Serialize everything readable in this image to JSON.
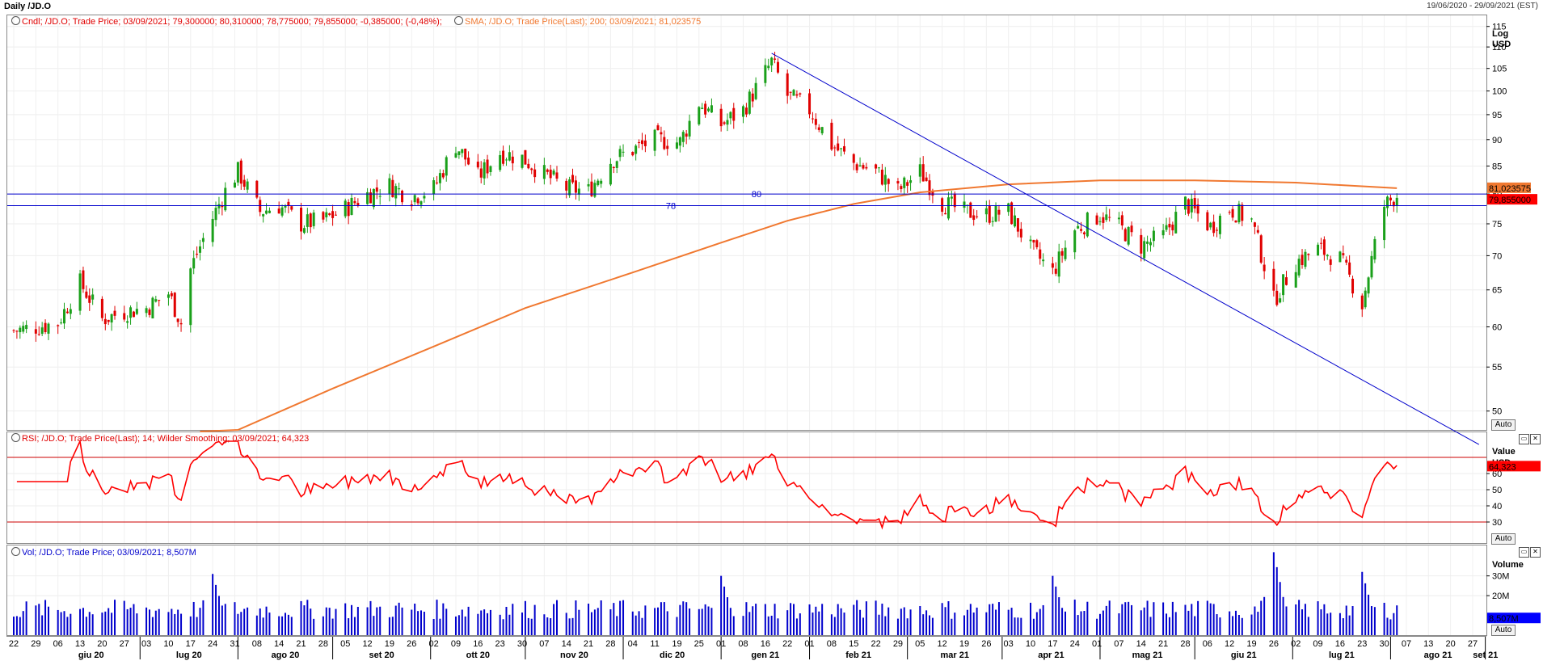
{
  "header": {
    "title": "Daily /JD.O",
    "range": "19/06/2020 - 29/09/2021 (EST)"
  },
  "panels": {
    "price": {
      "legend_candle": "Cndl; /JD.O; Trade Price; 03/09/2021; 79,300000; 80,310000; 78,775000; 79,855000; -0,385000; (-0,48%);",
      "legend_sma": "SMA; /JD.O; Trade Price(Last);  200; 03/09/2021; 81,023575",
      "axis_title_1": "Log",
      "axis_title_2": "USD",
      "ticks": [
        "115",
        "110",
        "105",
        "100",
        "95",
        "90",
        "85",
        "80",
        "75",
        "70",
        "65",
        "60",
        "55",
        "50"
      ],
      "tag_sma": "81,023575",
      "tag_last": "79,855000",
      "hline_80_label": "80",
      "hline_78_label": "78",
      "auto": "Auto"
    },
    "rsi": {
      "legend": "RSI; /JD.O; Trade Price(Last);  14; Wilder Smoothing; 03/09/2021; 64,323",
      "axis_title_1": "Value",
      "axis_title_2": "USD",
      "ticks": [
        "60",
        "50",
        "40",
        "30"
      ],
      "tag_last": "64,323",
      "auto": "Auto"
    },
    "volume": {
      "legend": "Vol; /JD.O; Trade Price; 03/09/2021; 8,507M",
      "axis_title_1": "Volume",
      "ticks": [
        "30M",
        "20M"
      ],
      "tag_last": "8,507M",
      "auto": "Auto"
    }
  },
  "xaxis": {
    "days": [
      "22",
      "29",
      "06",
      "13",
      "20",
      "27",
      "03",
      "10",
      "17",
      "24",
      "31",
      "08",
      "14",
      "21",
      "28",
      "05",
      "12",
      "19",
      "26",
      "02",
      "09",
      "16",
      "23",
      "30",
      "07",
      "14",
      "21",
      "28",
      "04",
      "11",
      "19",
      "25",
      "01",
      "08",
      "16",
      "22",
      "01",
      "08",
      "15",
      "22",
      "29",
      "05",
      "12",
      "19",
      "26",
      "03",
      "10",
      "17",
      "24",
      "01",
      "07",
      "14",
      "21",
      "28",
      "06",
      "12",
      "19",
      "26",
      "02",
      "09",
      "16",
      "23",
      "30",
      "07",
      "13",
      "20",
      "27"
    ],
    "months": [
      "giu 20",
      "lug 20",
      "ago 20",
      "set 20",
      "ott 20",
      "nov 20",
      "dic 20",
      "gen 21",
      "feb 21",
      "mar 21",
      "apr 21",
      "mag 21",
      "giu 21",
      "lug 21",
      "ago 21",
      "set 21"
    ]
  },
  "colors": {
    "up": "#1aa01a",
    "down": "#e00000",
    "sma": "#f07830",
    "hline": "#0000cc",
    "trend": "#0000cc",
    "rsi": "#ff0000",
    "volume": "#0000cc"
  },
  "chart_data": {
    "type": "candlestick",
    "symbol": "/JD.O",
    "scale": "log",
    "ylim": [
      48,
      118
    ],
    "horizontal_lines": [
      80,
      78
    ],
    "trendline": {
      "from": [
        "2021-02-17",
        108.5
      ],
      "to": [
        "2021-09-29",
        48.5
      ]
    },
    "sma_200": [
      [
        "2020-09-01",
        48.0
      ],
      [
        "2020-10-01",
        52.5
      ],
      [
        "2020-11-02",
        57.5
      ],
      [
        "2020-12-01",
        62.5
      ],
      [
        "2021-01-04",
        67.5
      ],
      [
        "2021-02-01",
        72.0
      ],
      [
        "2021-02-22",
        75.5
      ],
      [
        "2021-03-15",
        78.3
      ],
      [
        "2021-04-05",
        80.3
      ],
      [
        "2021-05-03",
        81.7
      ],
      [
        "2021-06-01",
        82.4
      ],
      [
        "2021-07-01",
        82.4
      ],
      [
        "2021-08-02",
        82.0
      ],
      [
        "2021-09-03",
        81.02
      ]
    ],
    "close": [
      [
        "2020-06-22",
        59.5
      ],
      [
        "2020-07-06",
        60.5
      ],
      [
        "2020-07-13",
        66.0
      ],
      [
        "2020-07-20",
        61.0
      ],
      [
        "2020-07-27",
        62.0
      ],
      [
        "2020-08-03",
        62.5
      ],
      [
        "2020-08-10",
        64.5
      ],
      [
        "2020-08-14",
        60.5
      ],
      [
        "2020-08-17",
        68.0
      ],
      [
        "2020-08-24",
        76.0
      ],
      [
        "2020-08-28",
        80.5
      ],
      [
        "2020-09-01",
        84.0
      ],
      [
        "2020-09-08",
        77.0
      ],
      [
        "2020-09-14",
        78.0
      ],
      [
        "2020-09-21",
        75.0
      ],
      [
        "2020-09-28",
        75.5
      ],
      [
        "2020-10-05",
        77.5
      ],
      [
        "2020-10-12",
        80.0
      ],
      [
        "2020-10-19",
        81.5
      ],
      [
        "2020-10-26",
        79.5
      ],
      [
        "2020-11-02",
        81.0
      ],
      [
        "2020-11-09",
        89.0
      ],
      [
        "2020-11-16",
        83.0
      ],
      [
        "2020-11-23",
        87.5
      ],
      [
        "2020-11-30",
        86.5
      ],
      [
        "2020-12-07",
        83.5
      ],
      [
        "2020-12-14",
        81.0
      ],
      [
        "2020-12-21",
        80.5
      ],
      [
        "2020-12-28",
        86.0
      ],
      [
        "2021-01-04",
        88.0
      ],
      [
        "2021-01-11",
        90.0
      ],
      [
        "2021-01-19",
        89.5
      ],
      [
        "2021-01-25",
        97.5
      ],
      [
        "2021-02-01",
        93.0
      ],
      [
        "2021-02-08",
        96.0
      ],
      [
        "2021-02-12",
        100.5
      ],
      [
        "2021-02-17",
        106.5
      ],
      [
        "2021-02-22",
        99.0
      ],
      [
        "2021-03-01",
        96.0
      ],
      [
        "2021-03-08",
        89.0
      ],
      [
        "2021-03-15",
        85.5
      ],
      [
        "2021-03-22",
        84.0
      ],
      [
        "2021-03-29",
        80.5
      ],
      [
        "2021-04-05",
        84.0
      ],
      [
        "2021-04-12",
        78.5
      ],
      [
        "2021-04-19",
        77.0
      ],
      [
        "2021-04-26",
        76.5
      ],
      [
        "2021-05-03",
        77.0
      ],
      [
        "2021-05-10",
        71.0
      ],
      [
        "2021-05-17",
        67.5
      ],
      [
        "2021-05-24",
        74.0
      ],
      [
        "2021-06-01",
        76.5
      ],
      [
        "2021-06-07",
        74.5
      ],
      [
        "2021-06-14",
        71.5
      ],
      [
        "2021-06-21",
        73.0
      ],
      [
        "2021-06-28",
        78.5
      ],
      [
        "2021-07-06",
        74.5
      ],
      [
        "2021-07-12",
        77.5
      ],
      [
        "2021-07-19",
        75.5
      ],
      [
        "2021-07-26",
        63.5
      ],
      [
        "2021-08-02",
        69.0
      ],
      [
        "2021-08-09",
        71.0
      ],
      [
        "2021-08-16",
        69.5
      ],
      [
        "2021-08-23",
        63.0
      ],
      [
        "2021-08-30",
        78.0
      ],
      [
        "2021-09-03",
        79.855
      ]
    ],
    "rsi_14": {
      "levels": [
        70,
        30
      ],
      "last": 64.323
    },
    "volume": {
      "unit": "M",
      "last": 8.507,
      "peaks": [
        [
          "2020-08-24",
          31
        ],
        [
          "2021-02-01",
          30
        ],
        [
          "2021-05-17",
          30
        ],
        [
          "2021-07-26",
          42
        ],
        [
          "2021-08-23",
          32
        ]
      ]
    }
  }
}
